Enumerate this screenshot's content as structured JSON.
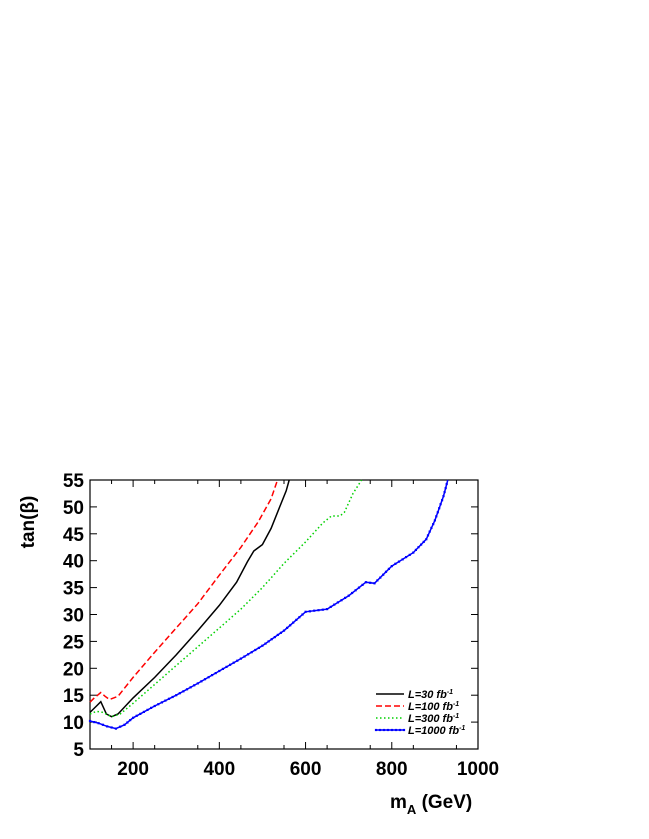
{
  "chart_data": {
    "type": "line",
    "xlabel": "m",
    "xlabel_sub": "A",
    "xlabel_units": " (GeV)",
    "ylabel": "tan(β)",
    "xlim": [
      100,
      1000
    ],
    "ylim": [
      5,
      55
    ],
    "xticks": [
      200,
      400,
      600,
      800,
      1000
    ],
    "yticks": [
      5,
      10,
      15,
      20,
      25,
      30,
      35,
      40,
      45,
      50,
      55
    ],
    "grid": false,
    "legend_position": "bottom-right",
    "series": [
      {
        "name": "L=30 fb",
        "name_sup": "-1",
        "color": "#000000",
        "style": "solid",
        "x": [
          100,
          115,
          125,
          138,
          150,
          165,
          200,
          250,
          300,
          350,
          400,
          440,
          465,
          480,
          500,
          520,
          540,
          555,
          562
        ],
        "y": [
          11.8,
          13.0,
          13.8,
          11.5,
          11.0,
          11.5,
          14.5,
          18.3,
          22.5,
          27.0,
          31.7,
          36.0,
          39.8,
          41.8,
          43.0,
          46.0,
          50.0,
          53.0,
          55.0
        ]
      },
      {
        "name": "L=100 fb",
        "name_sup": "-1",
        "color": "#ff0000",
        "style": "dashed",
        "x": [
          100,
          110,
          125,
          135,
          145,
          165,
          200,
          250,
          300,
          350,
          400,
          450,
          490,
          520,
          535
        ],
        "y": [
          13.7,
          14.5,
          15.5,
          14.8,
          14.2,
          14.8,
          18.3,
          23.0,
          27.5,
          32.0,
          37.3,
          42.5,
          47.2,
          51.5,
          55.0
        ]
      },
      {
        "name": "L=300 fb",
        "name_sup": "-1",
        "color": "#00d000",
        "style": "dotted",
        "x": [
          100,
          115,
          130,
          150,
          170,
          200,
          250,
          300,
          350,
          400,
          450,
          500,
          550,
          600,
          640,
          660,
          680,
          690,
          710,
          730
        ],
        "y": [
          11.5,
          12.0,
          11.8,
          11.0,
          11.5,
          13.5,
          17.0,
          20.5,
          24.0,
          27.5,
          31.0,
          35.0,
          39.5,
          43.5,
          47.0,
          48.3,
          48.3,
          49.0,
          52.5,
          55.0
        ]
      },
      {
        "name": "L=1000 fb",
        "name_sup": "-1",
        "color": "#0000ff",
        "style": "solid-points",
        "x": [
          100,
          120,
          140,
          160,
          180,
          200,
          250,
          300,
          350,
          400,
          450,
          500,
          550,
          600,
          650,
          700,
          740,
          760,
          800,
          850,
          880,
          900,
          920,
          930
        ],
        "y": [
          10.2,
          9.8,
          9.2,
          8.8,
          9.5,
          10.8,
          13.0,
          15.0,
          17.2,
          19.5,
          21.8,
          24.2,
          27.0,
          30.5,
          31.0,
          33.5,
          36.0,
          35.8,
          39.0,
          41.5,
          44.0,
          47.5,
          52.0,
          55.0
        ]
      }
    ]
  }
}
